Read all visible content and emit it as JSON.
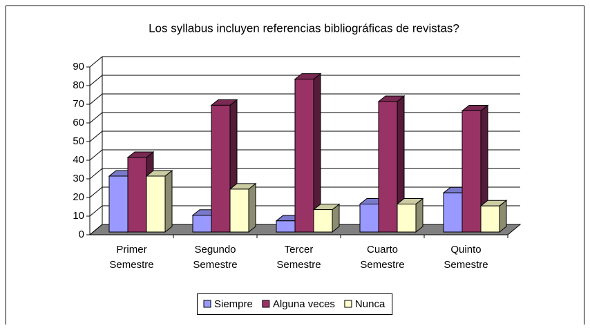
{
  "chart_data": {
    "type": "bar3d",
    "title": "Los syllabus incluyen referencias bibliográficas de revistas?",
    "categories": [
      "Primer Semestre",
      "Segundo Semestre",
      "Tercer Semestre",
      "Cuarto Semestre",
      "Quinto Semestre"
    ],
    "series": [
      {
        "name": "Siempre",
        "color": "#9999ff",
        "values": [
          30,
          9,
          6,
          15,
          21
        ]
      },
      {
        "name": "Alguna veces",
        "color": "#993366",
        "values": [
          40,
          68,
          82,
          70,
          65
        ]
      },
      {
        "name": "Nunca",
        "color": "#ffffcc",
        "values": [
          30,
          23,
          12,
          15,
          14
        ]
      }
    ],
    "ylim": [
      0,
      90
    ],
    "yticks": [
      0,
      10,
      20,
      30,
      40,
      50,
      60,
      70,
      80,
      90
    ],
    "grid": true,
    "legend": "bottom"
  }
}
